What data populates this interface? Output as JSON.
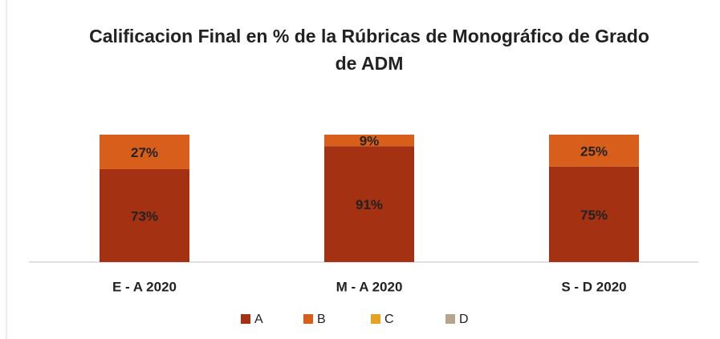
{
  "chart_data": {
    "type": "bar",
    "stacked": true,
    "percent": true,
    "title": "Calificacion Final en % de la Rúbricas de Monográfico de Grado de ADM",
    "categories": [
      "E - A 2020",
      "M - A 2020",
      "S - D 2020"
    ],
    "series": [
      {
        "name": "A",
        "color": "#a33112",
        "values": [
          73,
          91,
          75
        ],
        "value_labels": [
          "73%",
          "91%",
          "75%"
        ]
      },
      {
        "name": "B",
        "color": "#d85f1b",
        "values": [
          27,
          9,
          25
        ],
        "value_labels": [
          "27%",
          "9%",
          "25%"
        ]
      },
      {
        "name": "C",
        "color": "#e8a223",
        "values": [
          0,
          0,
          0
        ]
      },
      {
        "name": "D",
        "color": "#b5a58b",
        "values": [
          0,
          0,
          0
        ]
      }
    ],
    "legend": "bottom"
  }
}
